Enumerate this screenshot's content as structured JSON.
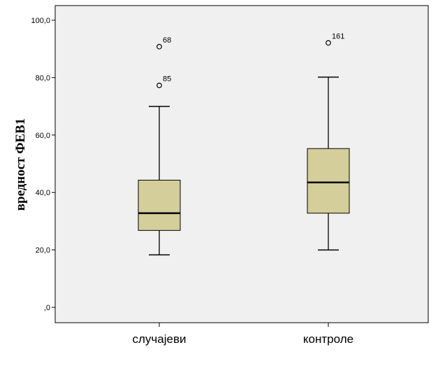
{
  "chart_data": {
    "type": "boxplot",
    "title": "",
    "xlabel": "",
    "ylabel": "вредност ФЕВ1",
    "ylim": [
      0,
      105
    ],
    "y_ticks": [
      0,
      20,
      40,
      60,
      80,
      100
    ],
    "y_tick_labels": [
      ",0",
      "20,0",
      "40,0",
      "60,0",
      "80,0",
      "100,0"
    ],
    "grid": false,
    "categories": [
      "случајеви",
      "контроле"
    ],
    "boxes": [
      {
        "category": "случајеви",
        "whisker_low": 18.3,
        "q1": 26.8,
        "median": 32.8,
        "q3": 44.3,
        "whisker_high": 70.0,
        "outliers": [
          {
            "label": "68",
            "value": 90.8
          },
          {
            "label": "85",
            "value": 77.3
          }
        ]
      },
      {
        "category": "контроле",
        "whisker_low": 20.0,
        "q1": 32.8,
        "median": 43.5,
        "q3": 55.3,
        "whisker_high": 80.2,
        "outliers": [
          {
            "label": "161",
            "value": 92.1
          }
        ]
      }
    ],
    "colors": {
      "plot_background": "#f0f0f0",
      "box_fill": "#d3ce9a",
      "line": "#000000"
    }
  }
}
